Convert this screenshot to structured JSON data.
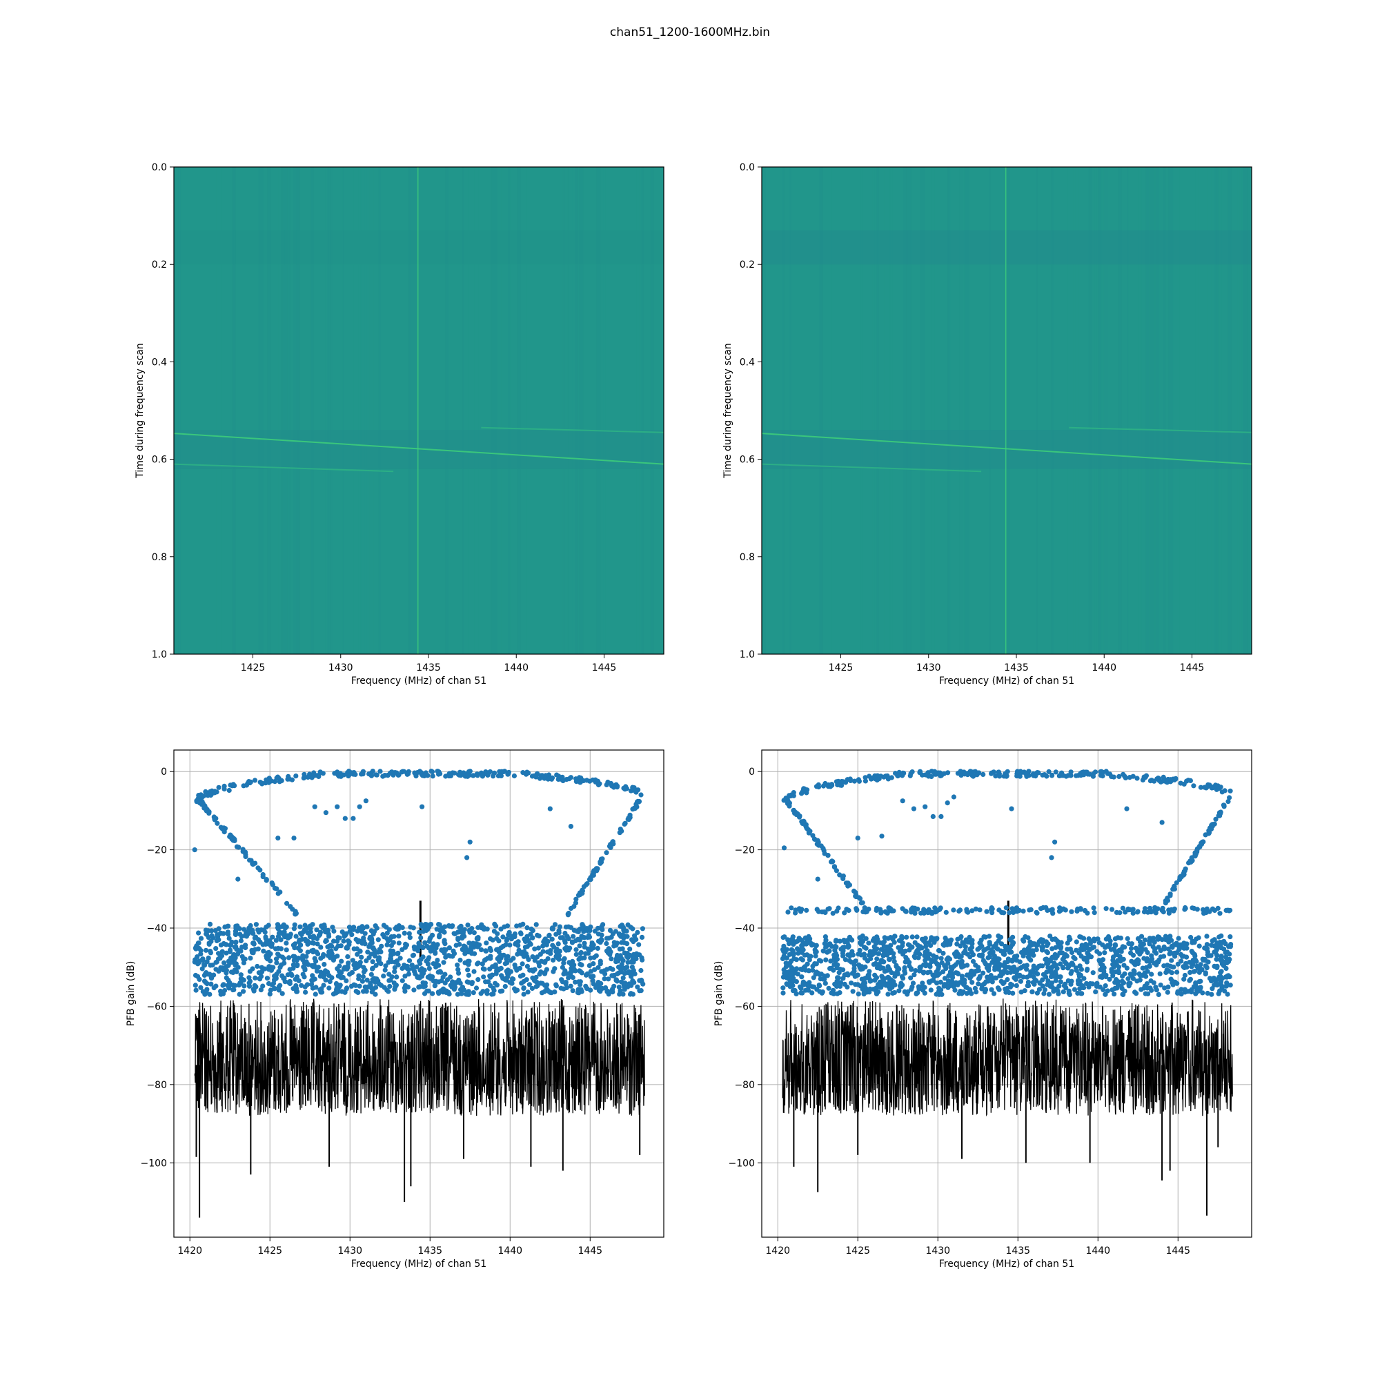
{
  "figure": {
    "suptitle": "chan51_1200-1600MHz.bin"
  },
  "chart_data": [
    {
      "type": "heatmap",
      "panel": "top-left",
      "xlabel": "Frequency (MHz) of chan 51",
      "ylabel": "Time during frequency scan",
      "xlim": [
        1420.5,
        1448.4
      ],
      "ylim": [
        1.0,
        0.0
      ],
      "xticks": [
        1425,
        1430,
        1435,
        1440,
        1445
      ],
      "xtick_labels": [
        "1425",
        "1430",
        "1435",
        "1440",
        "1445"
      ],
      "yticks": [
        0.0,
        0.2,
        0.4,
        0.6,
        0.8,
        1.0
      ],
      "ytick_labels": [
        "0.0",
        "0.2",
        "0.4",
        "0.6",
        "0.8",
        "1.0"
      ],
      "grid": false,
      "colors": {
        "background": "#21968b",
        "band": "#218a8d",
        "line": "#3fd07a"
      },
      "features": {
        "vertical_line_x": 1434.4,
        "dark_bands": [
          [
            0.13,
            0.2,
            0.1
          ],
          [
            0.54,
            0.62,
            0.35
          ]
        ],
        "diagonal_lines": [
          {
            "x": [
              1420.5,
              1448.4
            ],
            "y": [
              0.547,
              0.61
            ],
            "color": "#3fd07a"
          },
          {
            "x": [
              1420.5,
              1433.0
            ],
            "y": [
              0.61,
              0.625
            ],
            "color": "#2eb485"
          },
          {
            "x": [
              1438.0,
              1448.4
            ],
            "y": [
              0.535,
              0.545
            ],
            "color": "#2eb485"
          }
        ]
      }
    },
    {
      "type": "heatmap",
      "panel": "top-right",
      "xlabel": "Frequency (MHz) of chan 51",
      "ylabel": "Time during frequency scan",
      "xlim": [
        1420.5,
        1448.4
      ],
      "ylim": [
        1.0,
        0.0
      ],
      "xticks": [
        1425,
        1430,
        1435,
        1440,
        1445
      ],
      "xtick_labels": [
        "1425",
        "1430",
        "1435",
        "1440",
        "1445"
      ],
      "yticks": [
        0.0,
        0.2,
        0.4,
        0.6,
        0.8,
        1.0
      ],
      "ytick_labels": [
        "0.0",
        "0.2",
        "0.4",
        "0.6",
        "0.8",
        "1.0"
      ],
      "grid": false,
      "colors": {
        "background": "#21968b",
        "band": "#218a8d",
        "line": "#3fd07a"
      },
      "features": {
        "vertical_line_x": 1434.4,
        "dark_bands": [
          [
            0.13,
            0.2,
            0.45
          ],
          [
            0.54,
            0.62,
            0.45
          ]
        ],
        "diagonal_lines": [
          {
            "x": [
              1420.5,
              1448.4
            ],
            "y": [
              0.547,
              0.61
            ],
            "color": "#3fd07a"
          },
          {
            "x": [
              1420.5,
              1433.0
            ],
            "y": [
              0.61,
              0.625
            ],
            "color": "#2eb485"
          },
          {
            "x": [
              1438.0,
              1448.4
            ],
            "y": [
              0.535,
              0.545
            ],
            "color": "#2eb485"
          }
        ]
      }
    },
    {
      "type": "scatter",
      "panel": "bottom-left",
      "xlabel": "Frequency (MHz) of chan 51",
      "ylabel": "PFB gain (dB)",
      "xlim": [
        1419.0,
        1449.6
      ],
      "ylim": [
        -119.0,
        5.5
      ],
      "xticks": [
        1420,
        1425,
        1430,
        1435,
        1440,
        1445
      ],
      "xtick_labels": [
        "1420",
        "1425",
        "1430",
        "1435",
        "1440",
        "1445"
      ],
      "yticks": [
        0,
        -20,
        -40,
        -60,
        -80,
        -100
      ],
      "ytick_labels": [
        "0",
        "−20",
        "−40",
        "−60",
        "−80",
        "−100"
      ],
      "grid": true,
      "colors": {
        "points": "#1f77b4",
        "line": "#000000"
      },
      "series": [
        {
          "kind": "scatter",
          "components": {
            "top_curve": {
              "x_range": [
                1420.3,
                1448.3
              ],
              "edge_values": [
                -8,
                -6
              ],
              "flat_value": -0.6
            },
            "left_slope": {
              "x": [
                1420.5,
                1426.7
              ],
              "y": [
                -7.0,
                -36.5
              ]
            },
            "right_slope": {
              "x": [
                1443.6,
                1448.3
              ],
              "y": [
                -36.5,
                -6.0
              ]
            },
            "dense_band": {
              "x_range": [
                1420.3,
                1448.3
              ],
              "y_range": [
                -57.0,
                -39.0
              ]
            },
            "outliers": [
              [
                1420.3,
                -20
              ],
              [
                1423.0,
                -27.5
              ],
              [
                1425.5,
                -17
              ],
              [
                1426.5,
                -17
              ],
              [
                1427.8,
                -9
              ],
              [
                1428.5,
                -10.5
              ],
              [
                1429.2,
                -9
              ],
              [
                1429.7,
                -12
              ],
              [
                1430.2,
                -12
              ],
              [
                1430.6,
                -9
              ],
              [
                1431.0,
                -7.5
              ],
              [
                1434.5,
                -9
              ],
              [
                1437.3,
                -22
              ],
              [
                1437.5,
                -18
              ],
              [
                1442.5,
                -9.5
              ],
              [
                1443.8,
                -14
              ]
            ]
          }
        },
        {
          "kind": "line",
          "components": {
            "noise_floor": {
              "x_range": [
                1420.3,
                1448.4
              ],
              "y_range": [
                -88.0,
                -58.0
              ]
            },
            "deep_spikes": [
              [
                1420.4,
                -98.5
              ],
              [
                1420.6,
                -114
              ],
              [
                1423.8,
                -103
              ],
              [
                1428.7,
                -101
              ],
              [
                1433.4,
                -110
              ],
              [
                1433.8,
                -106
              ],
              [
                1437.1,
                -99
              ],
              [
                1441.3,
                -101
              ],
              [
                1443.3,
                -102
              ],
              [
                1448.1,
                -98
              ]
            ],
            "spike_up": {
              "x": 1434.4,
              "y_range": [
                -48,
                -33
              ]
            }
          }
        }
      ]
    },
    {
      "type": "scatter",
      "panel": "bottom-right",
      "xlabel": "Frequency (MHz) of chan 51",
      "ylabel": "PFB gain (dB)",
      "xlim": [
        1419.0,
        1449.6
      ],
      "ylim": [
        -119.0,
        5.5
      ],
      "xticks": [
        1420,
        1425,
        1430,
        1435,
        1440,
        1445
      ],
      "xtick_labels": [
        "1420",
        "1425",
        "1430",
        "1435",
        "1440",
        "1445"
      ],
      "yticks": [
        0,
        -20,
        -40,
        -60,
        -80,
        -100
      ],
      "ytick_labels": [
        "0",
        "−20",
        "−40",
        "−60",
        "−80",
        "−100"
      ],
      "grid": true,
      "colors": {
        "points": "#1f77b4",
        "line": "#000000"
      },
      "series": [
        {
          "kind": "scatter",
          "components": {
            "top_curve": {
              "x_range": [
                1420.3,
                1448.3
              ],
              "edge_values": [
                -8,
                -6
              ],
              "flat_value": -0.6
            },
            "left_slope": {
              "x": [
                1420.5,
                1425.5
              ],
              "y": [
                -7.0,
                -35.0
              ]
            },
            "right_slope": {
              "x": [
                1444.0,
                1448.3
              ],
              "y": [
                -35.0,
                -6.0
              ]
            },
            "plateau": {
              "x_range": [
                1420.3,
                1448.3
              ],
              "value": -35.5
            },
            "dense_band": {
              "x_range": [
                1420.3,
                1448.3
              ],
              "y_range": [
                -57.0,
                -42.0
              ]
            },
            "outliers": [
              [
                1420.4,
                -19.5
              ],
              [
                1422.5,
                -27.5
              ],
              [
                1425.0,
                -17
              ],
              [
                1426.5,
                -16.5
              ],
              [
                1427.8,
                -7.5
              ],
              [
                1428.5,
                -9.5
              ],
              [
                1429.2,
                -9
              ],
              [
                1429.7,
                -11.5
              ],
              [
                1430.2,
                -11.5
              ],
              [
                1430.6,
                -8
              ],
              [
                1431.0,
                -6.5
              ],
              [
                1434.6,
                -9.5
              ],
              [
                1437.1,
                -22
              ],
              [
                1437.3,
                -18
              ],
              [
                1441.8,
                -9.5
              ],
              [
                1444.0,
                -13
              ]
            ]
          }
        },
        {
          "kind": "line",
          "components": {
            "noise_floor": {
              "x_range": [
                1420.3,
                1448.4
              ],
              "y_range": [
                -88.0,
                -58.0
              ]
            },
            "deep_spikes": [
              [
                1421.0,
                -101
              ],
              [
                1422.5,
                -107.5
              ],
              [
                1425.0,
                -98
              ],
              [
                1431.5,
                -99
              ],
              [
                1435.5,
                -100
              ],
              [
                1439.5,
                -100
              ],
              [
                1444.0,
                -104.5
              ],
              [
                1444.5,
                -102
              ],
              [
                1446.8,
                -113.5
              ],
              [
                1447.5,
                -96
              ]
            ],
            "spike_up": {
              "x": 1434.4,
              "y_range": [
                -45,
                -33
              ]
            }
          }
        }
      ]
    }
  ]
}
